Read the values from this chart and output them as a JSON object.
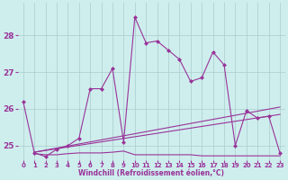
{
  "xlabel": "Windchill (Refroidissement éolien,°C)",
  "background_color": "#ceeeed",
  "grid_color": "#aacccc",
  "line_color": "#993399",
  "xlim": [
    -0.5,
    23.5
  ],
  "ylim": [
    24.6,
    28.9
  ],
  "yticks": [
    25,
    26,
    27,
    28
  ],
  "xticks": [
    0,
    1,
    2,
    3,
    4,
    5,
    6,
    7,
    8,
    9,
    10,
    11,
    12,
    13,
    14,
    15,
    16,
    17,
    18,
    19,
    20,
    21,
    22,
    23
  ],
  "series1_x": [
    0,
    1,
    2,
    3,
    4,
    5,
    6,
    7,
    8,
    9,
    10,
    11,
    12,
    13,
    14,
    15,
    16,
    17,
    18,
    19,
    20,
    21,
    22,
    23
  ],
  "series1_y": [
    26.2,
    24.8,
    24.7,
    24.9,
    25.0,
    25.2,
    26.55,
    26.55,
    27.1,
    25.1,
    28.5,
    27.8,
    27.85,
    27.6,
    27.35,
    26.75,
    26.85,
    27.55,
    27.2,
    25.0,
    25.95,
    25.75,
    25.8,
    24.8
  ],
  "series2_x": [
    1,
    2,
    3,
    4,
    5,
    6,
    7,
    8,
    9,
    10,
    11,
    12,
    13,
    14,
    15,
    16,
    17,
    18,
    19,
    20,
    21,
    22,
    23
  ],
  "series2_y": [
    24.78,
    24.75,
    24.75,
    24.78,
    24.8,
    24.8,
    24.8,
    24.82,
    24.85,
    24.75,
    24.75,
    24.75,
    24.75,
    24.75,
    24.75,
    24.72,
    24.72,
    24.72,
    24.72,
    24.72,
    24.72,
    24.72,
    24.72
  ],
  "series3_x": [
    1,
    23
  ],
  "series3_y": [
    24.82,
    25.85
  ],
  "series4_x": [
    1,
    23
  ],
  "series4_y": [
    24.82,
    26.05
  ]
}
